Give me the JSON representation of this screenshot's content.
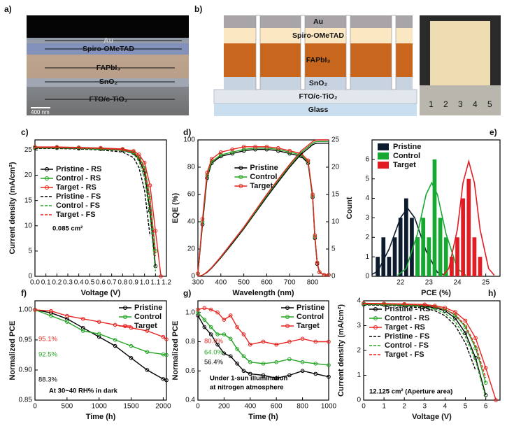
{
  "panel_a": {
    "label": "a)",
    "layers": [
      "Au",
      "Spiro-OMeTAD",
      "FAPbI₃",
      "SnO₂",
      "FTO/c-TiO₂"
    ],
    "scale_bar": "400 nm"
  },
  "panel_b": {
    "label": "b)",
    "layers": [
      "Au",
      "Spiro-OMeTAD",
      "FAPbI₃",
      "SnO₂",
      "FTO/c-TiO₂",
      "Glass"
    ],
    "ruler": [
      "1",
      "2",
      "3",
      "4",
      "5"
    ]
  },
  "chart_data": [
    {
      "type": "line",
      "label": "c)",
      "xlabel": "Voltage (V)",
      "ylabel": "Current density (mA/cm²)",
      "xlim": [
        0,
        1.2
      ],
      "xticks": [
        {
          "value": 0,
          "label": "0.0"
        },
        0.1,
        0.2,
        0.3,
        0.4,
        0.5,
        0.6,
        0.7,
        0.8,
        0.9,
        {
          "value": 1,
          "label": "1.0"
        },
        1.1,
        1.2
      ],
      "ylim": [
        0,
        27
      ],
      "yticks": [
        0,
        5,
        10,
        15,
        20,
        25
      ],
      "legend": "center left",
      "x": [
        0,
        0.2,
        0.4,
        0.6,
        0.8,
        0.9,
        0.95,
        1.0,
        1.05,
        1.1,
        1.15
      ],
      "series": [
        {
          "name": "Pristine - RS",
          "color": "#000000",
          "marker": true,
          "values": [
            25.4,
            25.4,
            25.3,
            25.2,
            25.0,
            24.4,
            23.2,
            20.5,
            13,
            2,
            null
          ]
        },
        {
          "name": "Control - RS",
          "color": "#22a522",
          "marker": true,
          "values": [
            25.5,
            25.5,
            25.4,
            25.3,
            25.1,
            24.6,
            23.6,
            21.5,
            15.5,
            5,
            null
          ]
        },
        {
          "name": "Target - RS",
          "color": "#e8231f",
          "marker": true,
          "values": [
            25.6,
            25.6,
            25.5,
            25.4,
            25.2,
            24.8,
            24.1,
            22.5,
            18,
            9,
            0
          ]
        },
        {
          "name": "Pristine - FS",
          "color": "#000000",
          "dashed": true,
          "values": [
            25.3,
            25.3,
            25.2,
            25.0,
            24.6,
            23.5,
            21.5,
            17,
            8,
            null,
            null
          ]
        },
        {
          "name": "Control - FS",
          "color": "#22a522",
          "dashed": true,
          "values": [
            25.4,
            25.4,
            25.3,
            25.1,
            24.9,
            24.2,
            22.8,
            19.5,
            12,
            1,
            null
          ]
        },
        {
          "name": "Target - FS",
          "color": "#e8231f",
          "dashed": true,
          "values": [
            25.5,
            25.5,
            25.4,
            25.3,
            25.0,
            24.5,
            23.5,
            21,
            15,
            4,
            null
          ]
        }
      ],
      "annotations": [
        {
          "text": "0.085 cm²",
          "color": "#000000"
        }
      ]
    },
    {
      "type": "line",
      "label": "d)",
      "xlabel": "Wavelength (nm)",
      "ylabel": "EQE (%)",
      "xlim": [
        300,
        870
      ],
      "xticks": [
        300,
        400,
        500,
        600,
        700,
        800
      ],
      "ylim": [
        0,
        100
      ],
      "yticks": [
        0,
        20,
        40,
        60,
        80,
        100
      ],
      "y2lim": [
        0,
        25
      ],
      "y2ticks": [
        0,
        5,
        10,
        15,
        20,
        25
      ],
      "legend": "center",
      "x": [
        300,
        320,
        340,
        360,
        400,
        450,
        500,
        550,
        600,
        650,
        700,
        750,
        780,
        800,
        810,
        820,
        830,
        850,
        870
      ],
      "series": [
        {
          "name": "Pristine",
          "color": "#000000",
          "marker": true,
          "values": [
            2,
            38,
            72,
            83,
            88,
            90,
            92,
            93,
            93,
            92,
            90,
            88,
            83,
            58,
            28,
            9,
            3,
            1,
            1
          ]
        },
        {
          "name": "Control",
          "color": "#22a522",
          "marker": true,
          "values": [
            2,
            40,
            74,
            84,
            89,
            91,
            93,
            94,
            94,
            93,
            91,
            89,
            84,
            59,
            29,
            10,
            3,
            1,
            1
          ]
        },
        {
          "name": "Target",
          "color": "#e8231f",
          "marker": true,
          "values": [
            2,
            42,
            76,
            86,
            91,
            93,
            95,
            95,
            95,
            94,
            92,
            90,
            85,
            60,
            30,
            10,
            3,
            1,
            1
          ]
        },
        {
          "color": "#000000",
          "axis": "y2",
          "values": [
            0,
            0.2,
            0.7,
            1.5,
            3.4,
            6.0,
            8.7,
            11.6,
            14.5,
            17.3,
            20.0,
            22.4,
            23.4,
            24.1,
            24.3,
            24.4,
            24.4,
            24.4,
            24.4
          ]
        },
        {
          "color": "#22a522",
          "axis": "y2",
          "values": [
            0,
            0.2,
            0.8,
            1.6,
            3.5,
            6.2,
            8.9,
            11.8,
            14.8,
            17.6,
            20.3,
            22.7,
            23.7,
            24.4,
            24.6,
            24.7,
            24.7,
            24.7,
            24.7
          ]
        },
        {
          "color": "#e8231f",
          "axis": "y2",
          "values": [
            0,
            0.2,
            0.8,
            1.6,
            3.6,
            6.3,
            9.0,
            12.0,
            15.0,
            17.8,
            20.5,
            23.0,
            24.0,
            24.7,
            24.9,
            25.0,
            25.0,
            25.0,
            25.0
          ]
        }
      ]
    },
    {
      "type": "bar",
      "label": "e)",
      "xlabel": "PCE (%)",
      "ylabel": "Count",
      "xlim": [
        21,
        25.5
      ],
      "xticks": [
        22,
        23,
        24,
        25
      ],
      "ylim": [
        0,
        7
      ],
      "yticks": [
        0,
        1,
        2,
        3,
        4,
        5,
        6
      ],
      "legend": "upper left",
      "series": [
        {
          "name": "Pristine",
          "color": "#0d1b2e",
          "x": [
            21.2,
            21.4,
            21.6,
            21.8,
            22.0,
            22.2,
            22.4,
            22.6,
            22.8
          ],
          "values": [
            1,
            2,
            1,
            2,
            3,
            4,
            3,
            2,
            1
          ],
          "fit": {
            "x": [
              21.0,
              21.2,
              21.6,
              22.0,
              22.25,
              22.5,
              22.9,
              23.3,
              23.6
            ],
            "values": [
              0.1,
              0.25,
              1.4,
              3.0,
              3.5,
              3.0,
              1.3,
              0.2,
              0.05
            ]
          }
        },
        {
          "name": "Control",
          "color": "#17a832",
          "x": [
            22.6,
            22.8,
            23.0,
            23.2,
            23.4,
            23.6,
            23.8
          ],
          "values": [
            2,
            3,
            2,
            6,
            3,
            2,
            1
          ],
          "fit": {
            "x": [
              21.9,
              22.2,
              22.6,
              22.9,
              23.1,
              23.3,
              23.6,
              24.0,
              24.3
            ],
            "values": [
              0.05,
              0.4,
              2.2,
              4.2,
              4.8,
              4.2,
              2.2,
              0.4,
              0.05
            ]
          }
        },
        {
          "name": "Target",
          "color": "#e31b23",
          "x": [
            23.8,
            24.0,
            24.2,
            24.4,
            24.6,
            24.8
          ],
          "values": [
            1,
            2,
            4,
            5,
            2,
            1
          ],
          "fit": {
            "x": [
              23.5,
              23.7,
              24.0,
              24.2,
              24.4,
              24.6,
              24.8,
              25.1,
              25.3
            ],
            "values": [
              0.05,
              0.4,
              2.4,
              4.8,
              5.9,
              4.8,
              2.4,
              0.4,
              0.05
            ]
          }
        }
      ]
    },
    {
      "type": "line",
      "label": "f)",
      "xlabel": "Time (h)",
      "ylabel": "Normalized PCE",
      "xlim": [
        0,
        2050
      ],
      "xticks": [
        0,
        500,
        1000,
        1500,
        2000
      ],
      "ylim": [
        0.85,
        1.015
      ],
      "yticks": [
        0.85,
        {
          "value": 0.9,
          "label": "0.90"
        },
        0.95,
        {
          "value": 1,
          "label": "1.00"
        }
      ],
      "legend": "upper right",
      "x": [
        0,
        250,
        500,
        750,
        1000,
        1250,
        1500,
        1750,
        2000,
        2050
      ],
      "series": [
        {
          "name": "Pristine",
          "color": "#000000",
          "marker": true,
          "values": [
            1,
            0.995,
            0.985,
            0.97,
            0.955,
            0.94,
            0.92,
            0.9,
            0.885,
            0.883
          ]
        },
        {
          "name": "Control",
          "color": "#22a522",
          "marker": true,
          "values": [
            1,
            0.99,
            0.98,
            0.965,
            0.96,
            0.95,
            0.94,
            0.93,
            0.926,
            0.925
          ]
        },
        {
          "name": "Target",
          "color": "#e8231f",
          "marker": true,
          "values": [
            1,
            0.998,
            0.99,
            0.985,
            0.98,
            0.975,
            0.97,
            0.965,
            0.955,
            0.951
          ]
        }
      ],
      "annotations": [
        {
          "text": "95.1%",
          "color": "#e8231f"
        },
        {
          "text": "92.5%",
          "color": "#22a522"
        },
        {
          "text": "88.3%",
          "color": "#000000"
        },
        {
          "text": "At 30~40 RH% in dark",
          "color": "#000000"
        }
      ]
    },
    {
      "type": "line",
      "label": "g)",
      "xlabel": "Time (h)",
      "ylabel": "Normalized PCE",
      "xlim": [
        0,
        1000
      ],
      "xticks": [
        0,
        200,
        400,
        600,
        800,
        1000
      ],
      "ylim": [
        0.4,
        1.08
      ],
      "yticks": [
        0.4,
        0.6,
        0.8,
        {
          "value": 1,
          "label": "1.0"
        }
      ],
      "legend": "upper right",
      "x": [
        0,
        50,
        100,
        150,
        200,
        250,
        300,
        350,
        400,
        500,
        600,
        700,
        800,
        900,
        1000
      ],
      "series": [
        {
          "name": "Pristine",
          "color": "#000000",
          "marker": true,
          "values": [
            0.98,
            0.9,
            0.85,
            0.78,
            0.72,
            0.7,
            0.65,
            0.6,
            0.58,
            0.57,
            0.55,
            0.57,
            0.6,
            0.58,
            0.56
          ]
        },
        {
          "name": "Control",
          "color": "#22a522",
          "marker": true,
          "values": [
            1,
            0.95,
            0.9,
            0.85,
            0.85,
            0.82,
            0.75,
            0.7,
            0.66,
            0.65,
            0.66,
            0.68,
            0.66,
            0.65,
            0.64
          ]
        },
        {
          "name": "Target",
          "color": "#e8231f",
          "marker": true,
          "values": [
            1.02,
            1.03,
            1.02,
            1.0,
            0.95,
            0.98,
            0.9,
            0.85,
            0.78,
            0.8,
            0.78,
            0.8,
            0.82,
            0.8,
            0.8
          ]
        }
      ],
      "annotations": [
        {
          "text": "80.0%",
          "color": "#e8231f"
        },
        {
          "text": "64.0%",
          "color": "#22a522"
        },
        {
          "text": "56.4%",
          "color": "#000000"
        },
        {
          "text": "Under 1-sun illumination",
          "color": "#000000"
        },
        {
          "text": "at nitrogen atmosphere",
          "color": "#000000"
        }
      ]
    },
    {
      "type": "line",
      "label": "h)",
      "xlabel": "Voltage (V)",
      "ylabel": "Current density (mA/cm²)",
      "xlim": [
        0,
        6.7
      ],
      "xticks": [
        0,
        1,
        2,
        3,
        4,
        5,
        6
      ],
      "ylim": [
        0,
        4
      ],
      "yticks": [
        0,
        1,
        2,
        3,
        4
      ],
      "legend": "center left",
      "x": [
        0,
        1,
        2,
        3,
        3.5,
        4,
        4.5,
        5,
        5.5,
        6,
        6.5
      ],
      "series": [
        {
          "name": "Pristine - RS",
          "color": "#000000",
          "marker": true,
          "values": [
            3.85,
            3.84,
            3.82,
            3.78,
            3.72,
            3.6,
            3.3,
            2.7,
            1.7,
            0.2,
            null
          ]
        },
        {
          "name": "Control - RS",
          "color": "#22a522",
          "marker": true,
          "values": [
            3.87,
            3.86,
            3.84,
            3.81,
            3.76,
            3.66,
            3.42,
            2.95,
            2.1,
            0.7,
            null
          ]
        },
        {
          "name": "Target - RS",
          "color": "#e8231f",
          "marker": true,
          "values": [
            3.9,
            3.89,
            3.87,
            3.85,
            3.8,
            3.72,
            3.55,
            3.2,
            2.5,
            1.3,
            0
          ]
        },
        {
          "name": "Pristine - FS",
          "color": "#000000",
          "dashed": true,
          "values": [
            3.83,
            3.82,
            3.78,
            3.7,
            3.6,
            3.4,
            3.0,
            2.3,
            1.2,
            null,
            null
          ]
        },
        {
          "name": "Control - FS",
          "color": "#22a522",
          "dashed": true,
          "values": [
            3.85,
            3.84,
            3.81,
            3.75,
            3.67,
            3.5,
            3.15,
            2.55,
            1.6,
            0.1,
            null
          ]
        },
        {
          "name": "Target - FS",
          "color": "#e8231f",
          "dashed": true,
          "values": [
            3.88,
            3.87,
            3.85,
            3.82,
            3.76,
            3.65,
            3.45,
            3.0,
            2.2,
            0.9,
            null
          ]
        }
      ],
      "annotations": [
        {
          "text": "12.125 cm² (Aperture area)",
          "color": "#000000"
        }
      ]
    }
  ]
}
